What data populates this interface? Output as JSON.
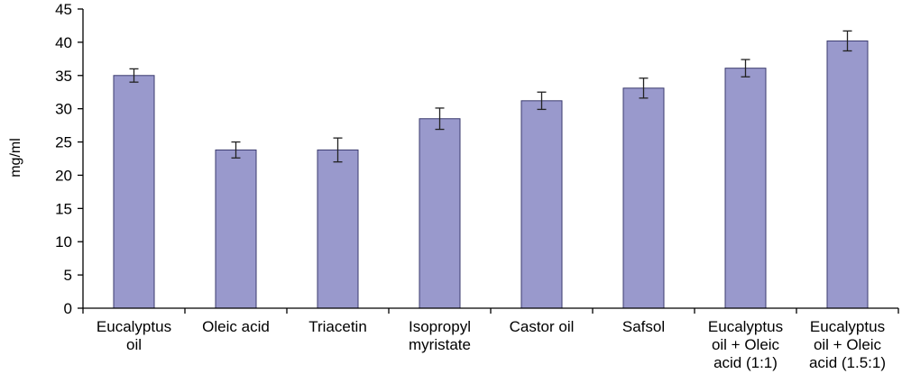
{
  "chart_data": {
    "type": "bar",
    "title": "",
    "xlabel": "",
    "ylabel": "mg/ml",
    "ylim": [
      0,
      45
    ],
    "yticks": [
      0,
      5,
      10,
      15,
      20,
      25,
      30,
      35,
      40,
      45
    ],
    "categories": [
      [
        "Eucalyptus",
        "oil"
      ],
      [
        "Oleic acid"
      ],
      [
        "Triacetin"
      ],
      [
        "Isopropyl",
        "myristate"
      ],
      [
        "Castor oil"
      ],
      [
        "Safsol"
      ],
      [
        "Eucalyptus",
        "oil + Oleic",
        "acid (1:1)"
      ],
      [
        "Eucalyptus",
        "oil + Oleic",
        "acid (1.5:1)"
      ]
    ],
    "series": [
      {
        "values": [
          35.0,
          23.8,
          23.8,
          28.5,
          31.2,
          33.1,
          36.1,
          40.2
        ],
        "errors": [
          1.0,
          1.2,
          1.8,
          1.6,
          1.3,
          1.5,
          1.3,
          1.5
        ],
        "color": "#9999cc"
      }
    ],
    "grid": false,
    "legend": "none"
  }
}
